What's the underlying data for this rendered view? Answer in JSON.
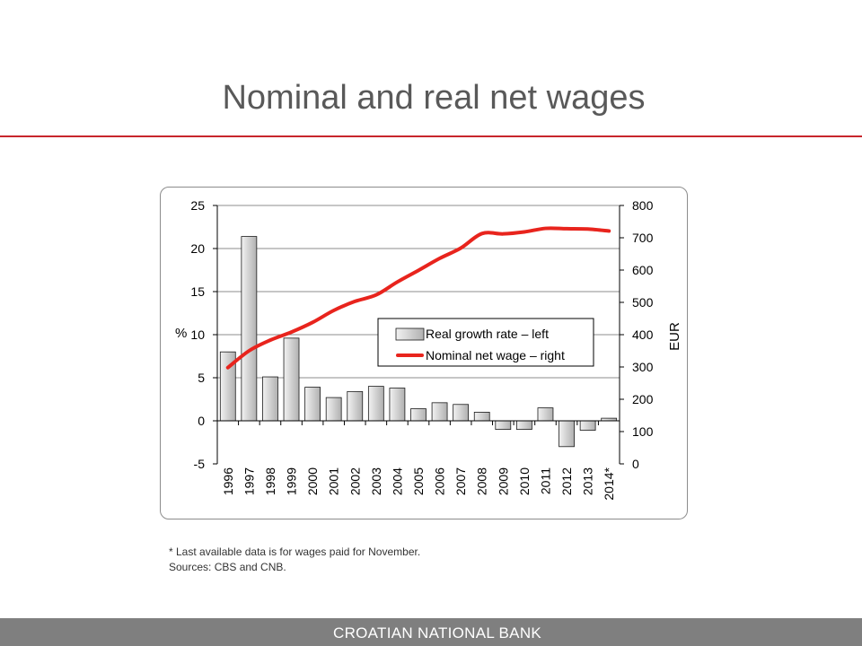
{
  "slide": {
    "title": "Nominal and real net wages",
    "footnote": "* Last available data is for wages paid for November.",
    "sources": "Sources: CBS and CNB.",
    "footer": "CROATIAN NATIONAL BANK"
  },
  "colors": {
    "accent_rule": "#c8262c",
    "line": "#e8241d",
    "bar_fill_light": "#f2f2f2",
    "bar_fill_dark": "#b0b0b0",
    "footer_bg": "#7f7f7f"
  },
  "chart_data": {
    "type": "bar",
    "categories": [
      "1996",
      "1997",
      "1998",
      "1999",
      "2000",
      "2001",
      "2002",
      "2003",
      "2004",
      "2005",
      "2006",
      "2007",
      "2008",
      "2009",
      "2010",
      "2011",
      "2012",
      "2013",
      "2014*"
    ],
    "series": [
      {
        "name": "Real growth rate – left",
        "type": "bar",
        "axis": "left",
        "values": [
          8.0,
          21.4,
          5.1,
          9.6,
          3.9,
          2.7,
          3.4,
          4.0,
          3.8,
          1.4,
          2.1,
          1.9,
          1.0,
          -1.0,
          -1.0,
          1.5,
          -3.0,
          -1.1,
          0.3
        ]
      },
      {
        "name": "Nominal net wage – right",
        "type": "line",
        "axis": "right",
        "values": [
          298,
          350,
          383,
          408,
          438,
          475,
          503,
          523,
          563,
          599,
          636,
          668,
          713,
          712,
          718,
          729,
          728,
          727,
          721
        ]
      }
    ],
    "y_left": {
      "label": "%",
      "ylim": [
        -5,
        25
      ],
      "ticks": [
        -5,
        0,
        5,
        10,
        15,
        20,
        25
      ]
    },
    "y_right": {
      "label": "EUR",
      "ylim": [
        0,
        800
      ],
      "ticks": [
        0,
        100,
        200,
        300,
        400,
        500,
        600,
        700,
        800
      ]
    },
    "grid": "horizontal",
    "legend": "center"
  }
}
